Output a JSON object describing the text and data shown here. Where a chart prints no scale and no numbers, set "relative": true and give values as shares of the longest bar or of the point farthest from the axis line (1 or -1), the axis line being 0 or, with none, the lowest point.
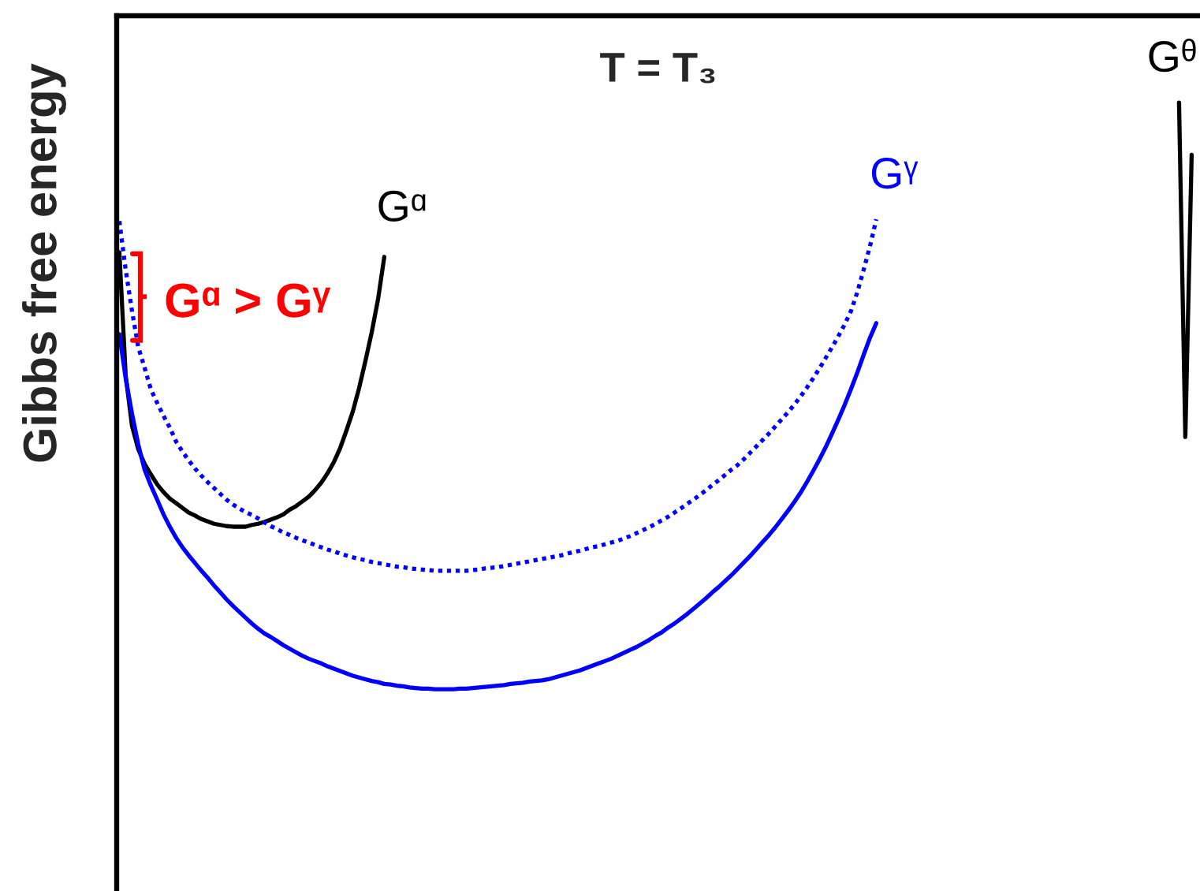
{
  "chart_data": {
    "type": "line",
    "title": "T = T₃",
    "ylabel": "Gibbs free energy",
    "relative": true,
    "line_style": "solid",
    "categories": [
      null,
      null,
      null,
      null,
      null,
      null,
      null,
      null,
      null,
      null,
      null,
      null,
      null,
      null,
      null,
      null,
      null,
      null,
      null,
      null,
      null,
      null,
      null,
      null,
      null,
      null,
      null,
      null,
      null,
      null,
      null,
      null,
      null,
      null,
      null,
      null,
      null,
      null,
      null,
      null,
      null,
      null,
      null,
      null,
      null,
      null,
      null,
      null,
      null,
      null,
      null,
      null,
      null,
      null,
      null,
      null,
      null,
      null,
      null,
      null,
      null,
      null,
      null,
      null,
      null,
      null,
      null,
      null,
      null,
      null,
      null,
      null,
      null,
      null,
      null,
      null,
      null,
      null,
      null,
      null,
      null,
      null,
      null,
      null,
      null,
      null,
      null,
      null,
      null,
      null,
      null,
      null,
      null,
      null,
      null,
      null,
      null,
      null,
      null,
      null,
      null,
      null,
      null,
      null,
      null,
      null,
      null,
      null,
      null,
      null,
      null,
      null,
      null,
      null,
      null,
      null,
      null,
      null,
      null,
      null,
      null,
      null,
      null,
      null,
      null,
      null,
      null,
      null,
      null,
      null,
      null,
      null,
      null,
      null,
      null,
      null,
      null,
      null,
      null,
      null,
      null,
      null,
      null,
      null,
      null,
      null,
      null,
      null,
      null,
      null,
      null,
      null,
      null,
      null,
      null,
      null,
      null,
      null,
      null,
      null,
      null,
      null,
      null,
      null,
      null,
      null,
      null,
      null,
      null,
      null,
      null
    ],
    "series": [
      {
        "name": "Gᵅ",
        "color": "#000000",
        "values": [
          0.745,
          0.535,
          0.449,
          0.409,
          0.384,
          0.366,
          0.349,
          0.336,
          0.325,
          0.317,
          0.309,
          0.301,
          0.296,
          0.29,
          0.286,
          0.282,
          0.28,
          0.278,
          0.277,
          0.277,
          0.277,
          0.28,
          0.282,
          0.285,
          0.289,
          0.293,
          0.298,
          0.306,
          0.312,
          0.32,
          0.328,
          0.339,
          0.352,
          0.368,
          0.387,
          0.411,
          0.441,
          0.473,
          0.513,
          0.559,
          0.608,
          0.664,
          0.737,
          null,
          null,
          null,
          null,
          null,
          null,
          null,
          null,
          null,
          null,
          null,
          null,
          null,
          null,
          null,
          null,
          null,
          null,
          null,
          null,
          null,
          null,
          null,
          null,
          null,
          null,
          null,
          null,
          null,
          null,
          null,
          null,
          null,
          null,
          null,
          null,
          null,
          null,
          null,
          null,
          null,
          null,
          null,
          null,
          null,
          null,
          null,
          null,
          null,
          null,
          null,
          null,
          null,
          null,
          null,
          null,
          null,
          null,
          null,
          null,
          null,
          null,
          null,
          null,
          null,
          null,
          null,
          null,
          null,
          null,
          null,
          null,
          null,
          null,
          null,
          null,
          null,
          null,
          null,
          null,
          null,
          null,
          null,
          null,
          null,
          null,
          null,
          null,
          null,
          null,
          null,
          null,
          null,
          null,
          null,
          null,
          null,
          null,
          null,
          null,
          null,
          null,
          null,
          null,
          null,
          null,
          null,
          null,
          null,
          null,
          null,
          null,
          null,
          null,
          null,
          null,
          null,
          null,
          null,
          null,
          null,
          null,
          null,
          null,
          null,
          null,
          null,
          null
        ]
      },
      {
        "name": "Gᵞ",
        "color": "#0000ff",
        "line_style": "dotted",
        "values": [
          0.798,
          0.715,
          0.645,
          0.583,
          0.548,
          0.511,
          0.488,
          0.466,
          0.446,
          0.422,
          0.405,
          0.39,
          0.376,
          0.364,
          0.353,
          0.343,
          0.333,
          0.323,
          0.315,
          0.308,
          0.302,
          0.297,
          0.291,
          0.284,
          0.278,
          0.273,
          0.267,
          0.263,
          0.258,
          0.254,
          0.25,
          0.246,
          0.242,
          0.238,
          0.235,
          0.231,
          0.228,
          0.225,
          0.222,
          0.22,
          0.217,
          0.215,
          0.213,
          0.211,
          0.209,
          0.208,
          0.206,
          0.205,
          0.204,
          0.203,
          0.202,
          0.202,
          0.202,
          0.202,
          0.202,
          0.202,
          0.203,
          0.204,
          0.206,
          0.207,
          0.208,
          0.21,
          0.212,
          0.214,
          0.216,
          0.218,
          0.22,
          0.222,
          0.224,
          0.226,
          0.228,
          0.231,
          0.234,
          0.236,
          0.239,
          0.242,
          0.244,
          0.247,
          0.25,
          0.253,
          0.257,
          0.261,
          0.266,
          0.271,
          0.276,
          0.282,
          0.288,
          0.294,
          0.301,
          0.308,
          0.316,
          0.323,
          0.331,
          0.339,
          0.348,
          0.356,
          0.365,
          0.374,
          0.382,
          0.392,
          0.403,
          0.414,
          0.425,
          0.436,
          0.448,
          0.46,
          0.472,
          0.485,
          0.499,
          0.514,
          0.53,
          0.547,
          0.565,
          0.583,
          0.602,
          0.622,
          0.645,
          0.677,
          0.715,
          0.755,
          0.801,
          null,
          null,
          null,
          null,
          null,
          null,
          null,
          null,
          null,
          null,
          null,
          null,
          null,
          null,
          null,
          null,
          null,
          null,
          null,
          null,
          null,
          null,
          null,
          null,
          null,
          null,
          null,
          null,
          null,
          null,
          null,
          null,
          null,
          null,
          null,
          null,
          null,
          null,
          null,
          null,
          null,
          null,
          null,
          null,
          null,
          null,
          null,
          null,
          null,
          null
        ]
      },
      {
        "color": "#0000ff",
        "values": [
          0.605,
          0.53,
          0.47,
          0.417,
          0.374,
          0.347,
          0.323,
          0.298,
          0.277,
          0.258,
          0.242,
          0.228,
          0.215,
          0.202,
          0.19,
          0.177,
          0.165,
          0.153,
          0.142,
          0.132,
          0.122,
          0.112,
          0.103,
          0.095,
          0.089,
          0.082,
          0.075,
          0.069,
          0.063,
          0.057,
          0.052,
          0.048,
          0.044,
          0.039,
          0.035,
          0.031,
          0.027,
          0.023,
          0.02,
          0.017,
          0.014,
          0.012,
          0.009,
          0.008,
          0.006,
          0.005,
          0.003,
          0.002,
          0.001,
          0.001,
          0,
          0,
          0,
          0,
          0.001,
          0.001,
          0.002,
          0.003,
          0.004,
          0.005,
          0.006,
          0.007,
          0.009,
          0.01,
          0.011,
          0.013,
          0.014,
          0.015,
          0.017,
          0.02,
          0.023,
          0.026,
          0.029,
          0.032,
          0.036,
          0.04,
          0.044,
          0.048,
          0.052,
          0.057,
          0.062,
          0.067,
          0.072,
          0.078,
          0.084,
          0.091,
          0.097,
          0.105,
          0.112,
          0.12,
          0.128,
          0.137,
          0.146,
          0.155,
          0.165,
          0.174,
          0.184,
          0.194,
          0.205,
          0.216,
          0.227,
          0.239,
          0.251,
          0.263,
          0.276,
          0.29,
          0.304,
          0.319,
          0.335,
          0.353,
          0.372,
          0.392,
          0.413,
          0.436,
          0.46,
          0.485,
          0.512,
          0.54,
          0.57,
          0.599,
          0.624,
          null,
          null,
          null,
          null,
          null,
          null,
          null,
          null,
          null,
          null,
          null,
          null,
          null,
          null,
          null,
          null,
          null,
          null,
          null,
          null,
          null,
          null,
          null,
          null,
          null,
          null,
          null,
          null,
          null,
          null,
          null,
          null,
          null,
          null,
          null,
          null,
          null,
          null,
          null,
          null,
          null,
          null,
          null,
          null,
          null,
          null,
          null,
          null,
          null,
          null
        ]
      },
      {
        "name": "Gᶿ",
        "color": "#000000",
        "values": [
          null,
          null,
          null,
          null,
          null,
          null,
          null,
          null,
          null,
          null,
          null,
          null,
          null,
          null,
          null,
          null,
          null,
          null,
          null,
          null,
          null,
          null,
          null,
          null,
          null,
          null,
          null,
          null,
          null,
          null,
          null,
          null,
          null,
          null,
          null,
          null,
          null,
          null,
          null,
          null,
          null,
          null,
          null,
          null,
          null,
          null,
          null,
          null,
          null,
          null,
          null,
          null,
          null,
          null,
          null,
          null,
          null,
          null,
          null,
          null,
          null,
          null,
          null,
          null,
          null,
          null,
          null,
          null,
          null,
          null,
          null,
          null,
          null,
          null,
          null,
          null,
          null,
          null,
          null,
          null,
          null,
          null,
          null,
          null,
          null,
          null,
          null,
          null,
          null,
          null,
          null,
          null,
          null,
          null,
          null,
          null,
          null,
          null,
          null,
          null,
          null,
          null,
          null,
          null,
          null,
          null,
          null,
          null,
          null,
          null,
          null,
          null,
          null,
          null,
          null,
          null,
          null,
          null,
          null,
          null,
          null,
          null,
          null,
          null,
          null,
          null,
          null,
          null,
          null,
          null,
          null,
          null,
          null,
          null,
          null,
          null,
          null,
          null,
          null,
          null,
          null,
          null,
          null,
          null,
          null,
          null,
          null,
          null,
          null,
          null,
          null,
          null,
          null,
          null,
          null,
          null,
          null,
          null,
          null,
          null,
          null,
          null,
          null,
          null,
          null,
          null,
          null,
          null,
          1.0,
          0.43,
          0.911
        ]
      }
    ],
    "annotations": [
      "Gᵅ > Gᵞ"
    ]
  }
}
